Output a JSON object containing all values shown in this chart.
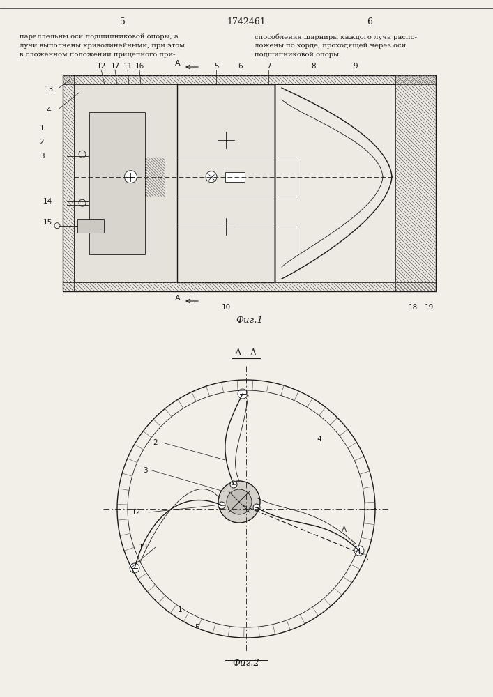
{
  "bg_color": "#f2efe9",
  "line_color": "#1a1a1a",
  "page_num_left": "5",
  "page_num_center": "1742461",
  "page_num_right": "6",
  "text_left_lines": [
    "параллельны оси подшипниковой опоры, а",
    "лучи выполнены криволинейными, при этом",
    "в сложенном положении прицепного при-"
  ],
  "text_right_lines": [
    "способления шарниры каждого луча распо-",
    "ложены по хорде, проходящей через оси",
    "подшипниковой опоры."
  ],
  "fig1_caption": "Фиг.1",
  "fig2_caption": "Фиг.2",
  "section_label": "А - А"
}
